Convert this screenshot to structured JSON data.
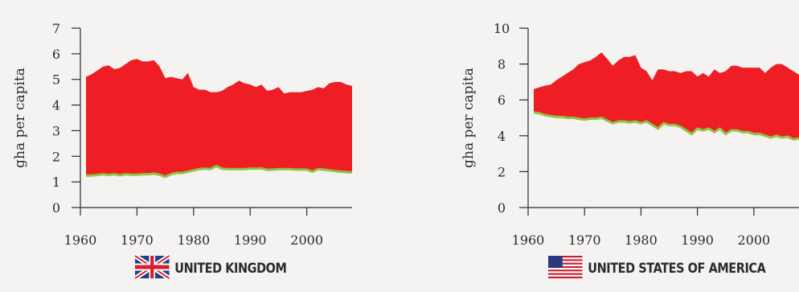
{
  "colors": {
    "fill": "#ee1e24",
    "line": "#8fc443",
    "axis": "#2b2b2b"
  },
  "chart_data": [
    {
      "type": "area",
      "country_label": "UNITED KINGDOM",
      "flag_icon": "uk-flag-icon",
      "ylabel": "gha per capita",
      "ylim": [
        0,
        7
      ],
      "xlim": [
        1960,
        2008
      ],
      "yticks": [
        0,
        1,
        2,
        3,
        4,
        5,
        6,
        7
      ],
      "xticks": [
        1960,
        1970,
        1980,
        1990,
        2000
      ],
      "x": [
        1961,
        1962,
        1963,
        1964,
        1965,
        1966,
        1967,
        1968,
        1969,
        1970,
        1971,
        1972,
        1973,
        1974,
        1975,
        1976,
        1977,
        1978,
        1979,
        1980,
        1981,
        1982,
        1983,
        1984,
        1985,
        1986,
        1987,
        1988,
        1989,
        1990,
        1991,
        1992,
        1993,
        1994,
        1995,
        1996,
        1997,
        1998,
        1999,
        2000,
        2001,
        2002,
        2003,
        2004,
        2005,
        2006,
        2007,
        2008
      ],
      "series": [
        {
          "values": [
            5.1,
            5.2,
            5.35,
            5.5,
            5.55,
            5.4,
            5.45,
            5.6,
            5.75,
            5.8,
            5.7,
            5.7,
            5.75,
            5.5,
            5.05,
            5.1,
            5.05,
            5.0,
            5.25,
            4.7,
            4.6,
            4.6,
            4.5,
            4.5,
            4.55,
            4.7,
            4.8,
            4.95,
            4.85,
            4.8,
            4.7,
            4.8,
            4.55,
            4.6,
            4.7,
            4.45,
            4.5,
            4.5,
            4.5,
            4.55,
            4.6,
            4.7,
            4.65,
            4.85,
            4.9,
            4.9,
            4.8,
            4.75
          ]
        },
        {
          "values": [
            1.25,
            1.25,
            1.27,
            1.3,
            1.27,
            1.3,
            1.26,
            1.3,
            1.28,
            1.28,
            1.3,
            1.3,
            1.32,
            1.28,
            1.2,
            1.3,
            1.35,
            1.35,
            1.4,
            1.45,
            1.5,
            1.52,
            1.5,
            1.62,
            1.52,
            1.5,
            1.5,
            1.5,
            1.5,
            1.52,
            1.52,
            1.53,
            1.47,
            1.48,
            1.5,
            1.5,
            1.5,
            1.48,
            1.48,
            1.48,
            1.4,
            1.5,
            1.48,
            1.45,
            1.42,
            1.4,
            1.38,
            1.37
          ]
        }
      ]
    },
    {
      "type": "area",
      "country_label": "UNITED STATES OF AMERICA",
      "flag_icon": "us-flag-icon",
      "ylabel": "gha per capita",
      "ylim": [
        0,
        10
      ],
      "xlim": [
        1960,
        2008
      ],
      "yticks": [
        0,
        2,
        4,
        6,
        8,
        10
      ],
      "xticks": [
        1960,
        1970,
        1980,
        1990,
        2000
      ],
      "x": [
        1961,
        1962,
        1963,
        1964,
        1965,
        1966,
        1967,
        1968,
        1969,
        1970,
        1971,
        1972,
        1973,
        1974,
        1975,
        1976,
        1977,
        1978,
        1979,
        1980,
        1981,
        1982,
        1983,
        1984,
        1985,
        1986,
        1987,
        1988,
        1989,
        1990,
        1991,
        1992,
        1993,
        1994,
        1995,
        1996,
        1997,
        1998,
        1999,
        2000,
        2001,
        2002,
        2003,
        2004,
        2005,
        2006,
        2007,
        2008
      ],
      "series": [
        {
          "values": [
            6.6,
            6.7,
            6.8,
            6.85,
            7.1,
            7.3,
            7.5,
            7.7,
            8.0,
            8.1,
            8.2,
            8.4,
            8.65,
            8.3,
            7.9,
            8.2,
            8.4,
            8.4,
            8.5,
            7.8,
            7.6,
            7.1,
            7.7,
            7.7,
            7.6,
            7.6,
            7.5,
            7.6,
            7.6,
            7.3,
            7.5,
            7.3,
            7.7,
            7.5,
            7.6,
            7.9,
            7.9,
            7.8,
            7.8,
            7.8,
            7.8,
            7.5,
            7.8,
            8.0,
            8.0,
            7.8,
            7.6,
            7.4
          ]
        },
        {
          "values": [
            5.3,
            5.25,
            5.15,
            5.1,
            5.05,
            5.05,
            5.0,
            5.0,
            4.95,
            4.9,
            4.95,
            4.95,
            5.0,
            4.85,
            4.7,
            4.8,
            4.8,
            4.75,
            4.8,
            4.7,
            4.8,
            4.6,
            4.4,
            4.7,
            4.6,
            4.6,
            4.5,
            4.3,
            4.1,
            4.4,
            4.3,
            4.4,
            4.2,
            4.4,
            4.1,
            4.3,
            4.3,
            4.2,
            4.2,
            4.1,
            4.1,
            4.0,
            3.9,
            4.0,
            3.9,
            3.95,
            3.8,
            3.85
          ]
        }
      ]
    }
  ]
}
